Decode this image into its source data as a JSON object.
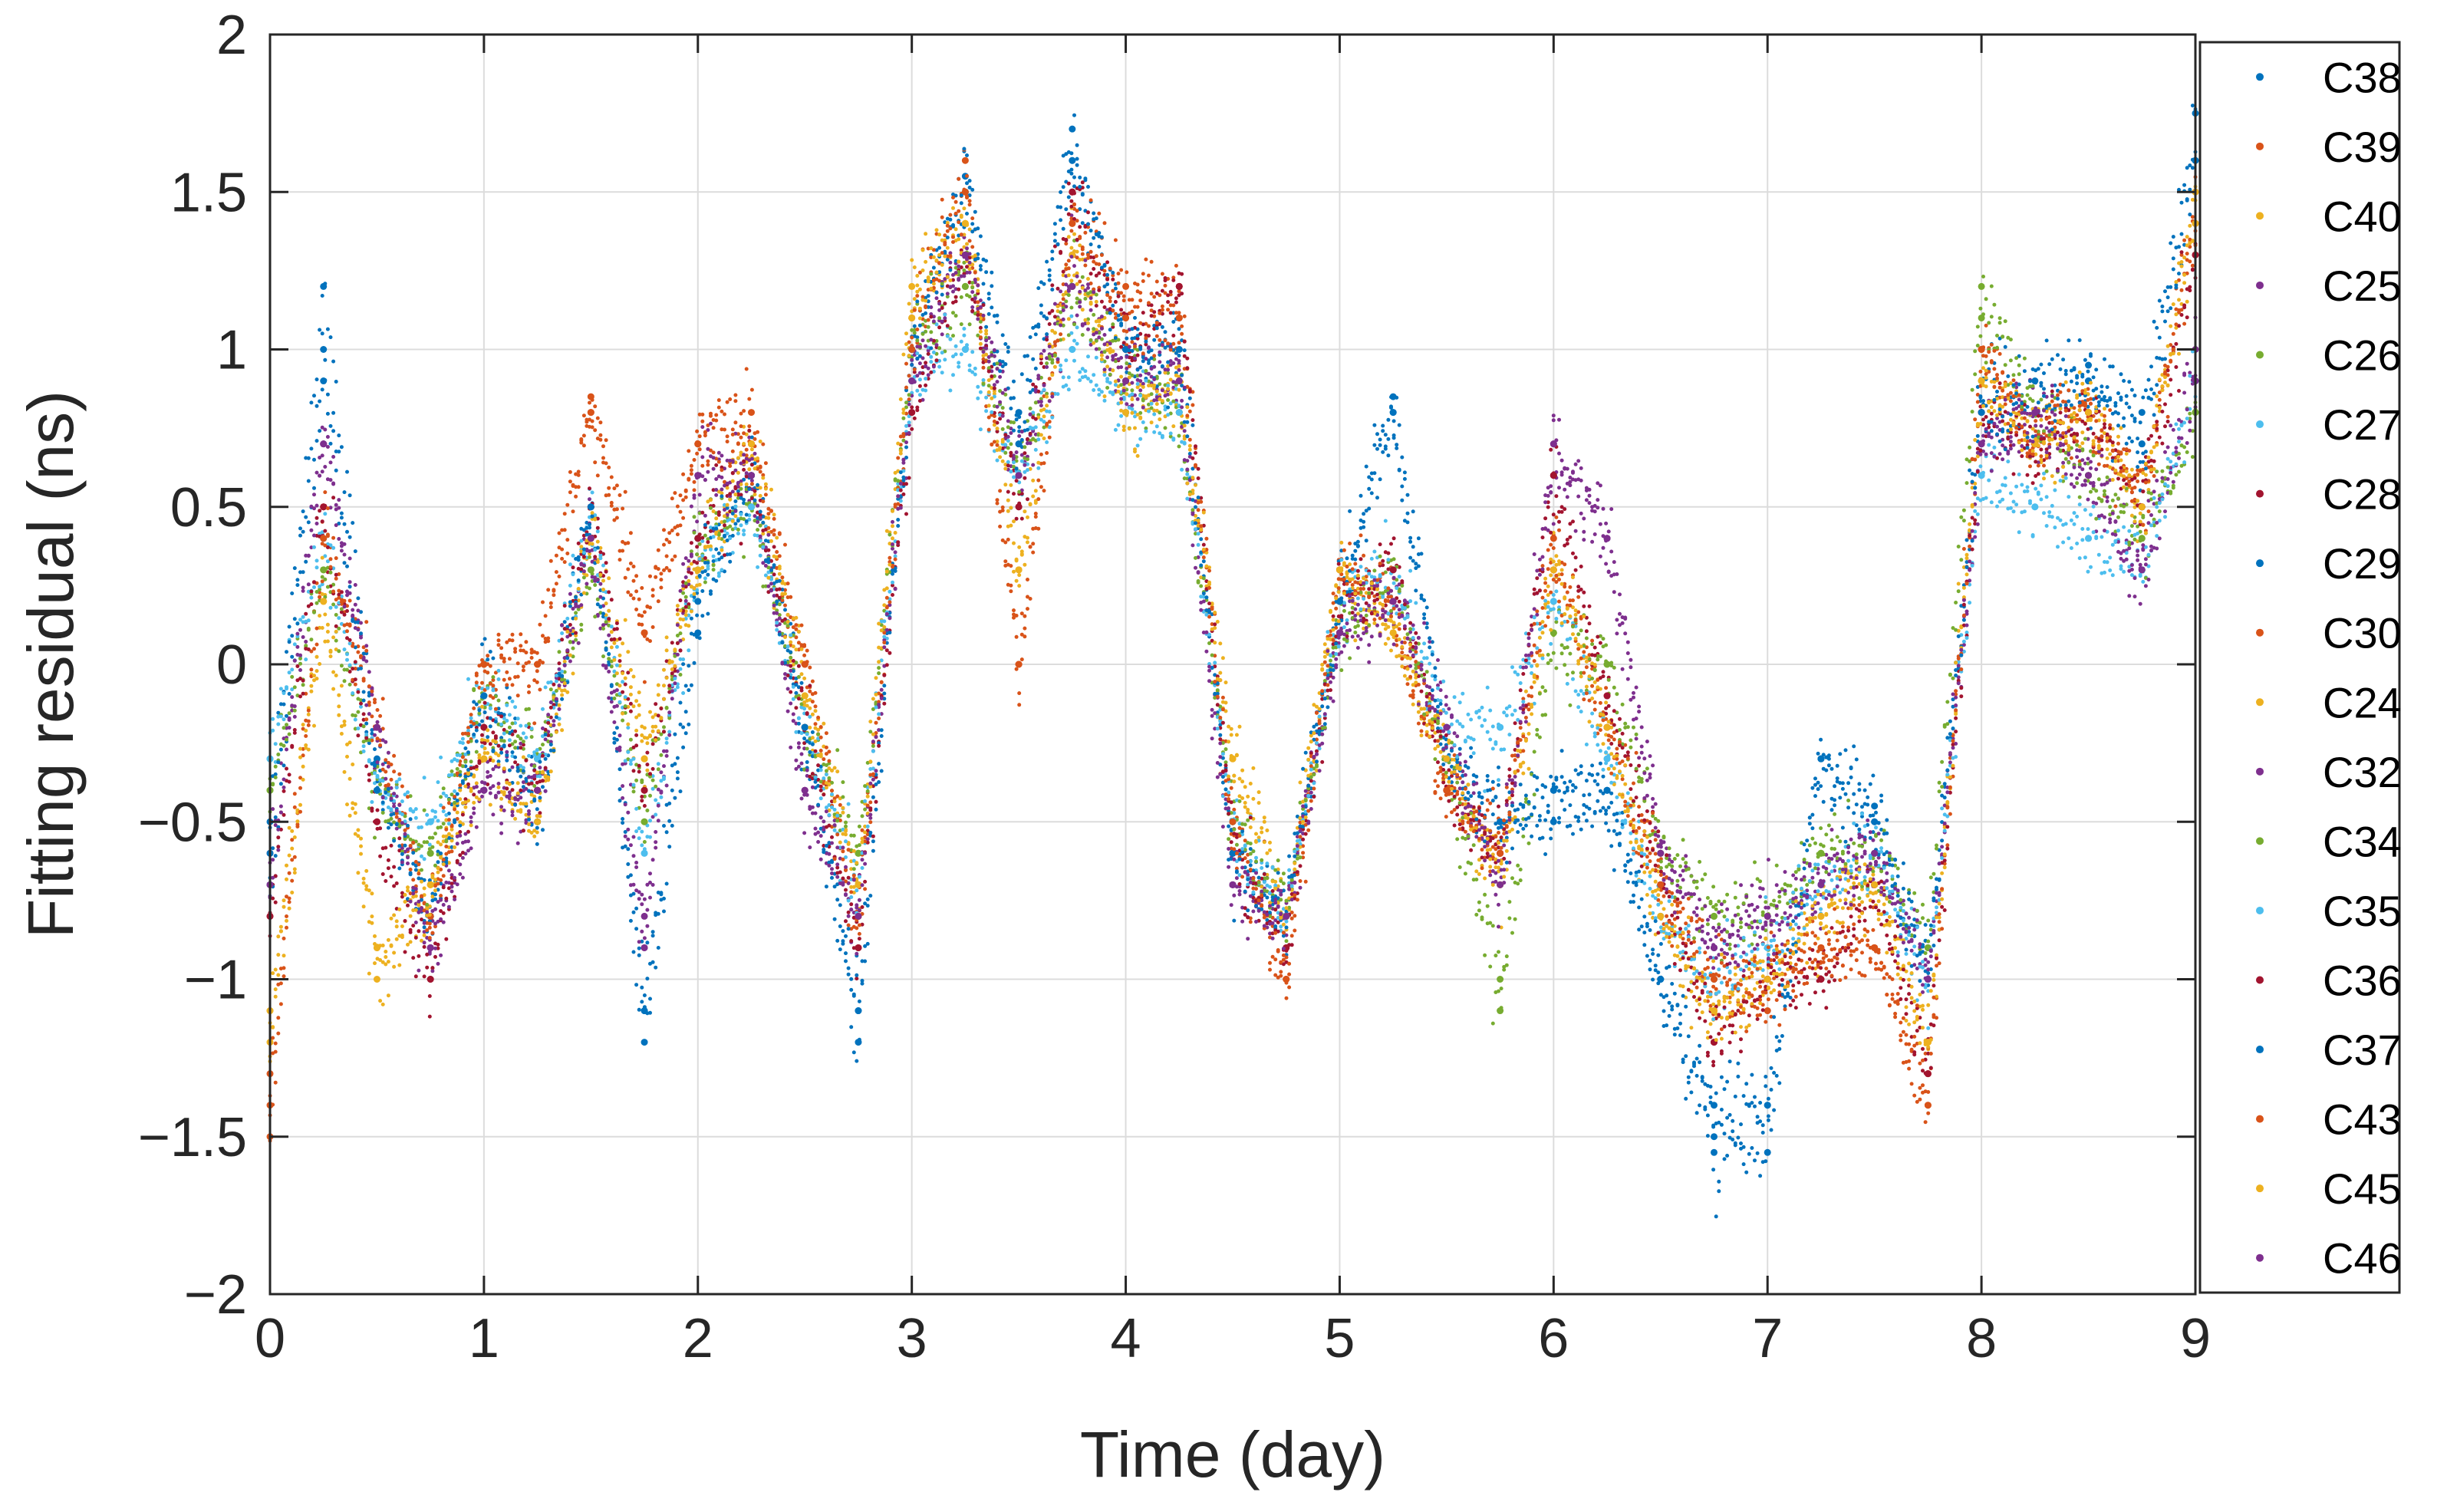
{
  "chart_data": {
    "type": "scatter",
    "title": "",
    "xlabel": "Time (day)",
    "ylabel": "Fitting residual (ns)",
    "xlim": [
      0,
      9
    ],
    "ylim": [
      -2,
      2
    ],
    "xticks": [
      0,
      1,
      2,
      3,
      4,
      5,
      6,
      7,
      8,
      9
    ],
    "yticks": [
      2,
      1.5,
      1,
      0.5,
      0,
      -0.5,
      -1,
      -1.5,
      -2
    ],
    "xtick_labels": [
      "0",
      "1",
      "2",
      "3",
      "4",
      "5",
      "6",
      "7",
      "8",
      "9"
    ],
    "ytick_labels": [
      "2",
      "1.5",
      "1",
      "0.5",
      "0",
      "−0.5",
      "−1",
      "−1.5",
      "−2"
    ],
    "grid": true,
    "legend_position": "outside-right",
    "x": [
      0,
      0.25,
      0.5,
      0.75,
      1,
      1.25,
      1.5,
      1.75,
      2,
      2.25,
      2.5,
      2.75,
      3,
      3.25,
      3.5,
      3.75,
      4,
      4.25,
      4.5,
      4.75,
      5,
      5.25,
      5.5,
      5.75,
      6,
      6.25,
      6.5,
      6.75,
      7,
      7.25,
      7.5,
      7.75,
      8,
      8.25,
      8.5,
      8.75,
      9
    ],
    "series": [
      {
        "name": "C38",
        "color": "#0072BD",
        "values": [
          -0.5,
          1.2,
          -0.3,
          -0.8,
          0,
          -0.4,
          0.5,
          -1.2,
          0.1,
          0.6,
          -0.2,
          -1.2,
          1.0,
          1.55,
          0.8,
          1.7,
          1.0,
          1.1,
          -0.6,
          -0.8,
          0.2,
          0.85,
          -0.3,
          -0.5,
          -0.5,
          -0.4,
          -1.0,
          -1.55,
          -1.55,
          -0.3,
          -0.45,
          -1.0,
          0.9,
          0.9,
          0.95,
          0.8,
          1.75
        ]
      },
      {
        "name": "C39",
        "color": "#D95319",
        "values": [
          -1.5,
          0.5,
          -0.2,
          -0.9,
          0,
          0.0,
          0.85,
          0.1,
          0.7,
          0.8,
          0.0,
          -0.9,
          1.1,
          1.6,
          0.0,
          1.5,
          1.2,
          1.2,
          -0.5,
          -1.0,
          0.3,
          0.2,
          -0.4,
          -0.6,
          0.4,
          -0.2,
          -0.7,
          -1.1,
          -1.1,
          -0.9,
          -0.9,
          -1.4,
          1.0,
          0.7,
          0.8,
          0.5,
          1.5
        ]
      },
      {
        "name": "C40",
        "color": "#EDB120",
        "values": [
          -1.2,
          0.2,
          -1.0,
          -0.7,
          -0.3,
          -0.5,
          0.4,
          -0.3,
          0.3,
          0.7,
          -0.1,
          -0.7,
          1.2,
          1.4,
          0.3,
          1.4,
          0.8,
          0.9,
          -0.3,
          -0.8,
          0.3,
          0.1,
          -0.3,
          -0.7,
          0.3,
          -0.2,
          -0.8,
          -1.1,
          -1.0,
          -0.8,
          -0.7,
          -1.2,
          0.9,
          0.7,
          0.8,
          0.5,
          1.5
        ]
      },
      {
        "name": "C25",
        "color": "#7E2F8E",
        "values": [
          -0.6,
          0.7,
          -0.2,
          -0.9,
          -0.4,
          -0.4,
          0.4,
          -0.8,
          0.6,
          0.6,
          -0.4,
          -0.8,
          0.9,
          1.3,
          0.6,
          1.3,
          0.9,
          0.9,
          -0.7,
          -0.8,
          0.1,
          0.2,
          -0.2,
          -0.7,
          0.6,
          0.4,
          -0.6,
          -0.9,
          -0.8,
          -0.7,
          -0.6,
          -1.0,
          0.7,
          0.8,
          0.6,
          0.3,
          1.0
        ]
      },
      {
        "name": "C26",
        "color": "#77AC30",
        "values": [
          -0.4,
          0.3,
          -0.4,
          -0.6,
          -0.1,
          -0.3,
          0.3,
          -0.5,
          0.4,
          0.5,
          -0.2,
          -0.6,
          1.0,
          1.2,
          0.6,
          1.2,
          0.9,
          0.8,
          -0.5,
          -0.8,
          0.1,
          0.3,
          -0.3,
          -1.1,
          0.1,
          0.0,
          -0.6,
          -0.8,
          -0.8,
          -0.6,
          -0.6,
          -0.9,
          1.2,
          0.8,
          0.6,
          0.4,
          0.8
        ]
      },
      {
        "name": "C27",
        "color": "#4DBEEE",
        "values": [
          -0.3,
          0.4,
          -0.4,
          -0.5,
          -0.1,
          -0.3,
          0.5,
          -0.6,
          0.3,
          0.5,
          -0.2,
          -0.7,
          0.9,
          1.0,
          0.6,
          1.0,
          0.8,
          0.8,
          -0.5,
          -0.8,
          0.2,
          0.3,
          -0.2,
          -0.2,
          0.2,
          -0.3,
          -0.8,
          -1.0,
          -0.9,
          -0.7,
          -0.6,
          -1.0,
          0.6,
          0.5,
          0.4,
          0.3,
          0.9
        ]
      },
      {
        "name": "C28",
        "color": "#A2142F",
        "values": [
          -0.8,
          0.5,
          -0.5,
          -1.0,
          -0.2,
          -0.4,
          0.5,
          -0.4,
          0.4,
          0.6,
          -0.2,
          -0.9,
          0.8,
          1.3,
          0.5,
          1.5,
          1.0,
          1.2,
          -0.6,
          -0.9,
          0.2,
          0.3,
          -0.4,
          -0.6,
          0.6,
          -0.1,
          -0.7,
          -1.2,
          -1.0,
          -1.0,
          -0.7,
          -1.3,
          0.8,
          0.7,
          0.8,
          0.5,
          1.3
        ]
      },
      {
        "name": "C29",
        "color": "#0072BD",
        "values": [
          -0.7,
          0.9,
          -0.4,
          -0.8,
          -0.1,
          -0.5,
          0.5,
          -1.1,
          0.3,
          0.6,
          -0.2,
          -1.1,
          1.0,
          1.5,
          0.7,
          1.6,
          1.0,
          1.0,
          -0.6,
          -0.8,
          0.2,
          0.8,
          -0.3,
          -0.5,
          -0.4,
          -0.4,
          -1.0,
          -1.4,
          -1.4,
          -0.3,
          -0.5,
          -1.0,
          0.8,
          0.8,
          0.9,
          0.7,
          1.6
        ]
      },
      {
        "name": "C30",
        "color": "#D95319",
        "values": [
          -1.3,
          0.4,
          -0.2,
          -0.8,
          0.0,
          0.0,
          0.8,
          0.1,
          0.7,
          0.7,
          0.0,
          -0.8,
          1.0,
          1.5,
          0.0,
          1.4,
          1.1,
          1.1,
          -0.5,
          -1.0,
          0.3,
          0.2,
          -0.4,
          -0.6,
          0.3,
          -0.2,
          -0.7,
          -1.0,
          -1.0,
          -0.9,
          -0.9,
          -1.3,
          1.0,
          0.7,
          0.8,
          0.5,
          1.4
        ]
      },
      {
        "name": "C24",
        "color": "#EDB120",
        "values": [
          -1.1,
          0.2,
          -0.9,
          -0.7,
          -0.3,
          -0.5,
          0.4,
          -0.3,
          0.3,
          0.7,
          -0.1,
          -0.7,
          1.1,
          1.4,
          0.3,
          1.3,
          0.8,
          0.9,
          -0.3,
          -0.8,
          0.3,
          0.1,
          -0.3,
          -0.7,
          0.3,
          -0.2,
          -0.8,
          -1.1,
          -1.0,
          -0.8,
          -0.7,
          -1.2,
          0.9,
          0.7,
          0.8,
          0.5,
          1.4
        ]
      },
      {
        "name": "C32",
        "color": "#7E2F8E",
        "values": [
          -0.7,
          0.7,
          -0.2,
          -0.9,
          -0.4,
          -0.4,
          0.4,
          -0.9,
          0.6,
          0.6,
          -0.4,
          -0.8,
          0.9,
          1.3,
          0.6,
          1.2,
          0.9,
          0.9,
          -0.7,
          -0.8,
          0.1,
          0.2,
          -0.2,
          -0.7,
          0.7,
          0.4,
          -0.6,
          -0.9,
          -0.8,
          -0.7,
          -0.6,
          -1.0,
          0.7,
          0.8,
          0.6,
          0.3,
          0.9
        ]
      },
      {
        "name": "C34",
        "color": "#77AC30",
        "values": [
          -0.4,
          0.3,
          -0.4,
          -0.6,
          -0.1,
          -0.3,
          0.3,
          -0.5,
          0.4,
          0.5,
          -0.2,
          -0.6,
          1.0,
          1.2,
          0.6,
          1.2,
          0.9,
          0.8,
          -0.5,
          -0.8,
          0.1,
          0.3,
          -0.3,
          -1.0,
          0.1,
          0.0,
          -0.6,
          -0.8,
          -0.8,
          -0.6,
          -0.6,
          -0.9,
          1.1,
          0.8,
          0.6,
          0.4,
          0.8
        ]
      },
      {
        "name": "C35",
        "color": "#4DBEEE",
        "values": [
          -0.3,
          0.4,
          -0.4,
          -0.5,
          -0.1,
          -0.3,
          0.5,
          -0.6,
          0.3,
          0.5,
          -0.2,
          -0.7,
          0.9,
          1.0,
          0.6,
          1.0,
          0.8,
          0.8,
          -0.5,
          -0.8,
          0.2,
          0.3,
          -0.2,
          -0.2,
          0.2,
          -0.3,
          -0.8,
          -1.0,
          -0.9,
          -0.7,
          -0.6,
          -1.0,
          0.6,
          0.5,
          0.4,
          0.3,
          0.9
        ]
      },
      {
        "name": "C36",
        "color": "#A2142F",
        "values": [
          -0.8,
          0.5,
          -0.5,
          -1.0,
          -0.2,
          -0.4,
          0.5,
          -0.4,
          0.4,
          0.6,
          -0.2,
          -0.9,
          0.8,
          1.3,
          0.5,
          1.5,
          1.0,
          1.2,
          -0.6,
          -0.9,
          0.2,
          0.3,
          -0.4,
          -0.6,
          0.6,
          -0.1,
          -0.7,
          -1.2,
          -1.0,
          -1.0,
          -0.7,
          -1.3,
          0.8,
          0.7,
          0.8,
          0.5,
          1.3
        ]
      },
      {
        "name": "C37",
        "color": "#0072BD",
        "values": [
          -0.6,
          1.0,
          -0.4,
          -0.8,
          -0.1,
          -0.5,
          0.5,
          -1.1,
          0.2,
          0.6,
          -0.2,
          -1.1,
          1.0,
          1.5,
          0.7,
          1.6,
          1.0,
          1.0,
          -0.6,
          -0.8,
          0.2,
          0.8,
          -0.3,
          -0.5,
          -0.4,
          -0.4,
          -1.0,
          -1.5,
          -1.4,
          -0.3,
          -0.5,
          -1.0,
          0.8,
          0.8,
          0.9,
          0.7,
          1.6
        ]
      },
      {
        "name": "C43",
        "color": "#D95319",
        "values": [
          -1.4,
          0.4,
          -0.2,
          -0.8,
          0.0,
          0.0,
          0.8,
          0.1,
          0.7,
          0.7,
          0.0,
          -0.8,
          1.0,
          1.5,
          0.0,
          1.4,
          1.1,
          1.1,
          -0.5,
          -1.0,
          0.3,
          0.2,
          -0.4,
          -0.6,
          0.3,
          -0.2,
          -0.7,
          -1.0,
          -1.0,
          -0.9,
          -0.9,
          -1.4,
          1.0,
          0.7,
          0.8,
          0.5,
          1.4
        ]
      },
      {
        "name": "C45",
        "color": "#EDB120",
        "values": [
          -1.1,
          0.2,
          -0.9,
          -0.7,
          -0.3,
          -0.5,
          0.4,
          -0.3,
          0.3,
          0.7,
          -0.1,
          -0.7,
          1.1,
          1.4,
          0.3,
          1.3,
          0.8,
          0.9,
          -0.3,
          -0.8,
          0.3,
          0.1,
          -0.3,
          -0.7,
          0.3,
          -0.2,
          -0.8,
          -1.1,
          -1.0,
          -0.8,
          -0.7,
          -1.2,
          0.9,
          0.7,
          0.8,
          0.5,
          1.4
        ]
      },
      {
        "name": "C46",
        "color": "#7E2F8E",
        "values": [
          -0.7,
          0.7,
          -0.2,
          -0.9,
          -0.4,
          -0.4,
          0.4,
          -0.9,
          0.6,
          0.6,
          -0.4,
          -0.8,
          0.9,
          1.3,
          0.6,
          1.2,
          0.9,
          0.9,
          -0.7,
          -0.8,
          0.1,
          0.2,
          -0.2,
          -0.7,
          0.7,
          0.4,
          -0.6,
          -0.9,
          -0.8,
          -0.7,
          -0.6,
          -1.0,
          0.7,
          0.8,
          0.6,
          0.3,
          0.9
        ]
      }
    ]
  }
}
